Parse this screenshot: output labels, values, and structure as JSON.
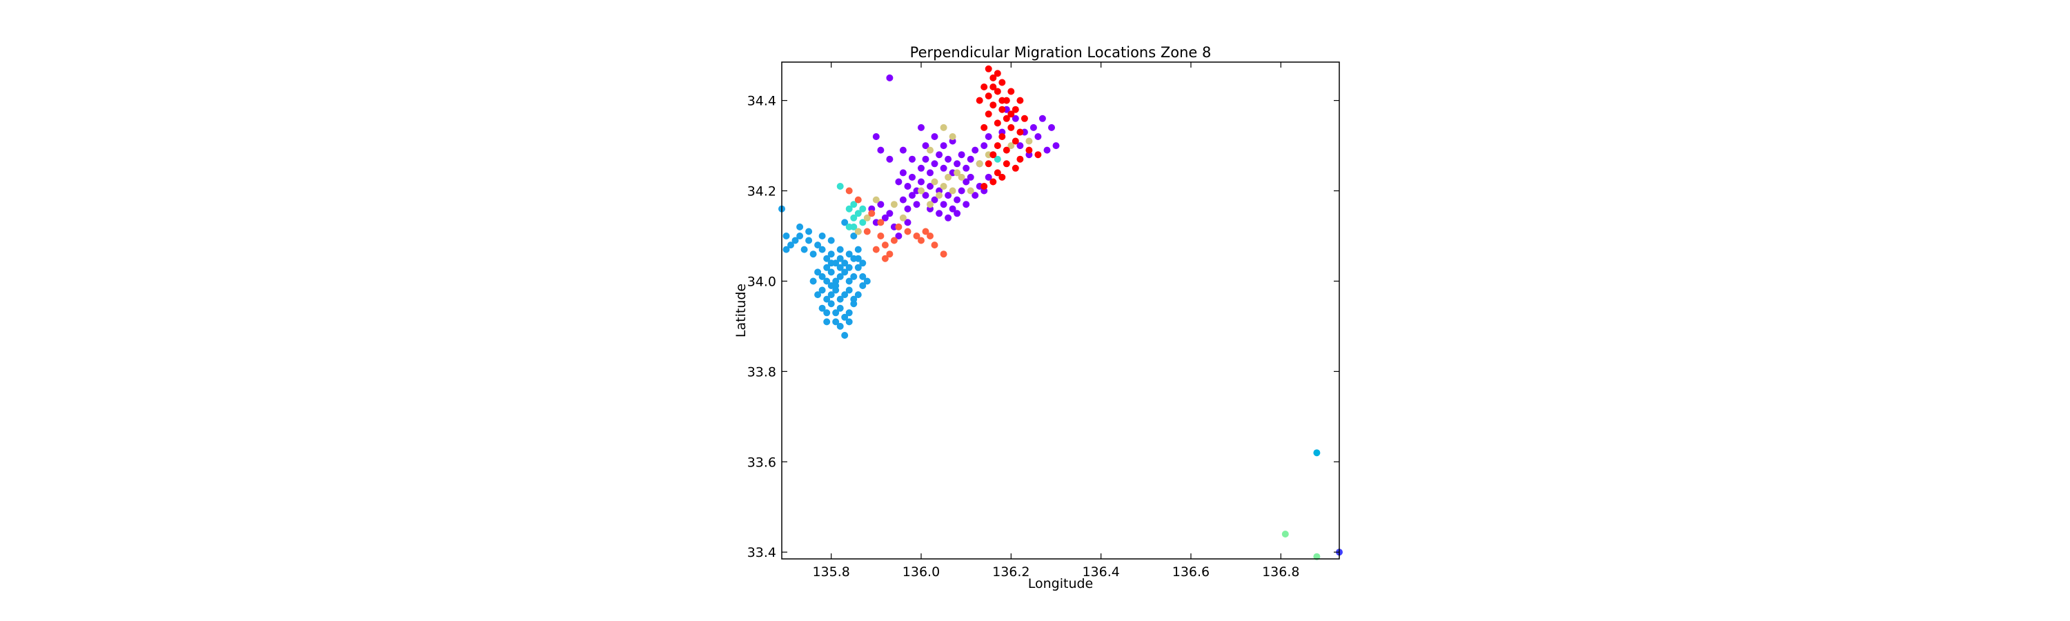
{
  "chart_data": {
    "type": "scatter",
    "title": "Perpendicular Migration Locations Zone 8",
    "xlabel": "Longitude",
    "ylabel": "Latitude",
    "xlim": [
      135.69,
      136.93
    ],
    "ylim": [
      33.385,
      34.485
    ],
    "xticks": [
      135.8,
      136.0,
      136.2,
      136.4,
      136.6,
      136.8
    ],
    "xtick_labels": [
      "135.8",
      "136.0",
      "136.2",
      "136.4",
      "136.6",
      "136.8"
    ],
    "yticks": [
      33.4,
      33.6,
      33.8,
      34.0,
      34.2,
      34.4
    ],
    "ytick_labels": [
      "33.4",
      "33.6",
      "33.8",
      "34.0",
      "34.2",
      "34.4"
    ],
    "grid": false,
    "legend": "none",
    "series": [
      {
        "color": "#1aa0e8",
        "points": [
          [
            135.7,
            34.1
          ],
          [
            135.71,
            34.08
          ],
          [
            135.72,
            34.09
          ],
          [
            135.73,
            34.1
          ],
          [
            135.7,
            34.07
          ],
          [
            135.69,
            34.16
          ],
          [
            135.74,
            34.07
          ],
          [
            135.75,
            34.09
          ],
          [
            135.76,
            34.06
          ],
          [
            135.77,
            34.08
          ],
          [
            135.78,
            34.07
          ],
          [
            135.79,
            34.05
          ],
          [
            135.8,
            34.06
          ],
          [
            135.81,
            34.04
          ],
          [
            135.82,
            34.05
          ],
          [
            135.83,
            34.04
          ],
          [
            135.84,
            34.06
          ],
          [
            135.85,
            34.05
          ],
          [
            135.76,
            34.0
          ],
          [
            135.77,
            34.02
          ],
          [
            135.78,
            34.01
          ],
          [
            135.79,
            34.03
          ],
          [
            135.8,
            34.02
          ],
          [
            135.81,
            34.0
          ],
          [
            135.82,
            34.01
          ],
          [
            135.83,
            34.02
          ],
          [
            135.84,
            34.0
          ],
          [
            135.85,
            34.01
          ],
          [
            135.86,
            34.03
          ],
          [
            135.87,
            34.04
          ],
          [
            135.77,
            33.97
          ],
          [
            135.78,
            33.98
          ],
          [
            135.79,
            33.96
          ],
          [
            135.8,
            33.97
          ],
          [
            135.81,
            33.98
          ],
          [
            135.82,
            33.96
          ],
          [
            135.83,
            33.97
          ],
          [
            135.84,
            33.98
          ],
          [
            135.85,
            33.96
          ],
          [
            135.86,
            33.97
          ],
          [
            135.87,
            33.99
          ],
          [
            135.78,
            33.94
          ],
          [
            135.79,
            33.93
          ],
          [
            135.8,
            33.95
          ],
          [
            135.81,
            33.93
          ],
          [
            135.82,
            33.94
          ],
          [
            135.83,
            33.92
          ],
          [
            135.84,
            33.93
          ],
          [
            135.85,
            33.95
          ],
          [
            135.79,
            33.91
          ],
          [
            135.81,
            33.91
          ],
          [
            135.82,
            33.9
          ],
          [
            135.84,
            33.91
          ],
          [
            135.83,
            33.88
          ],
          [
            135.87,
            34.01
          ],
          [
            135.88,
            34.0
          ],
          [
            135.86,
            34.05
          ],
          [
            135.82,
            34.07
          ],
          [
            135.8,
            34.09
          ],
          [
            135.78,
            34.1
          ],
          [
            135.75,
            34.11
          ],
          [
            135.73,
            34.12
          ],
          [
            135.83,
            34.13
          ],
          [
            135.85,
            34.1
          ],
          [
            135.86,
            34.07
          ],
          [
            135.81,
            33.99
          ],
          [
            135.8,
            33.99
          ],
          [
            135.79,
            34.0
          ],
          [
            135.82,
            34.03
          ],
          [
            135.84,
            34.03
          ],
          [
            135.8,
            34.04
          ]
        ]
      },
      {
        "color": "#36e0d0",
        "points": [
          [
            135.84,
            34.16
          ],
          [
            135.85,
            34.14
          ],
          [
            135.86,
            34.15
          ],
          [
            135.87,
            34.13
          ],
          [
            135.85,
            34.12
          ],
          [
            135.86,
            34.11
          ],
          [
            135.84,
            34.12
          ],
          [
            135.82,
            34.21
          ],
          [
            135.87,
            34.16
          ],
          [
            135.85,
            34.17
          ],
          [
            136.16,
            34.28
          ],
          [
            136.17,
            34.27
          ]
        ]
      },
      {
        "color": "#8000ff",
        "points": [
          [
            135.95,
            34.22
          ],
          [
            135.96,
            34.24
          ],
          [
            135.97,
            34.21
          ],
          [
            135.98,
            34.23
          ],
          [
            135.99,
            34.2
          ],
          [
            136.0,
            34.22
          ],
          [
            136.01,
            34.19
          ],
          [
            136.02,
            34.21
          ],
          [
            136.03,
            34.18
          ],
          [
            136.04,
            34.2
          ],
          [
            136.05,
            34.17
          ],
          [
            136.06,
            34.19
          ],
          [
            136.07,
            34.16
          ],
          [
            136.08,
            34.18
          ],
          [
            136.09,
            34.2
          ],
          [
            136.1,
            34.22
          ],
          [
            135.96,
            34.18
          ],
          [
            135.97,
            34.16
          ],
          [
            135.98,
            34.19
          ],
          [
            135.99,
            34.17
          ],
          [
            136.0,
            34.25
          ],
          [
            136.01,
            34.27
          ],
          [
            136.02,
            34.24
          ],
          [
            136.03,
            34.26
          ],
          [
            136.04,
            34.28
          ],
          [
            136.05,
            34.25
          ],
          [
            136.06,
            34.27
          ],
          [
            136.07,
            34.24
          ],
          [
            136.08,
            34.26
          ],
          [
            136.09,
            34.28
          ],
          [
            136.1,
            34.25
          ],
          [
            136.11,
            34.27
          ],
          [
            136.12,
            34.29
          ],
          [
            136.13,
            34.26
          ],
          [
            136.14,
            34.3
          ],
          [
            136.15,
            34.32
          ],
          [
            135.93,
            34.15
          ],
          [
            135.92,
            34.14
          ],
          [
            135.91,
            34.17
          ],
          [
            135.9,
            34.13
          ],
          [
            135.89,
            34.16
          ],
          [
            135.94,
            34.12
          ],
          [
            135.95,
            34.1
          ],
          [
            135.97,
            34.13
          ],
          [
            136.02,
            34.16
          ],
          [
            136.04,
            34.15
          ],
          [
            136.06,
            34.14
          ],
          [
            136.08,
            34.15
          ],
          [
            136.1,
            34.17
          ],
          [
            136.12,
            34.19
          ],
          [
            136.11,
            34.23
          ],
          [
            136.13,
            34.21
          ],
          [
            135.93,
            34.27
          ],
          [
            135.91,
            34.29
          ],
          [
            135.9,
            34.32
          ],
          [
            136.0,
            34.34
          ],
          [
            136.03,
            34.32
          ],
          [
            136.05,
            34.3
          ],
          [
            136.07,
            34.31
          ],
          [
            136.01,
            34.3
          ],
          [
            135.98,
            34.27
          ],
          [
            135.96,
            34.29
          ],
          [
            136.22,
            34.3
          ],
          [
            136.24,
            34.28
          ],
          [
            136.26,
            34.32
          ],
          [
            136.28,
            34.29
          ],
          [
            136.29,
            34.34
          ],
          [
            136.27,
            34.36
          ],
          [
            136.25,
            34.34
          ],
          [
            136.23,
            34.33
          ],
          [
            136.21,
            34.36
          ],
          [
            136.19,
            34.38
          ],
          [
            136.18,
            34.33
          ],
          [
            136.3,
            34.3
          ],
          [
            135.93,
            34.45
          ],
          [
            136.14,
            34.2
          ],
          [
            136.15,
            34.23
          ]
        ]
      },
      {
        "color": "#d4c880",
        "points": [
          [
            136.03,
            34.22
          ],
          [
            136.05,
            34.21
          ],
          [
            136.06,
            34.23
          ],
          [
            136.04,
            34.19
          ],
          [
            136.07,
            34.2
          ],
          [
            136.09,
            34.23
          ],
          [
            136.05,
            34.34
          ],
          [
            136.07,
            34.32
          ],
          [
            136.02,
            34.17
          ],
          [
            135.96,
            34.14
          ],
          [
            135.94,
            34.17
          ],
          [
            135.9,
            34.18
          ],
          [
            135.86,
            34.11
          ],
          [
            135.88,
            34.14
          ],
          [
            136.13,
            34.26
          ],
          [
            136.15,
            34.28
          ],
          [
            136.2,
            34.3
          ],
          [
            136.24,
            34.31
          ],
          [
            136.11,
            34.2
          ],
          [
            136.0,
            34.2
          ],
          [
            136.08,
            34.24
          ],
          [
            136.02,
            34.29
          ]
        ]
      },
      {
        "color": "#ff6040",
        "points": [
          [
            135.91,
            34.1
          ],
          [
            135.92,
            34.08
          ],
          [
            135.93,
            34.06
          ],
          [
            135.92,
            34.05
          ],
          [
            135.94,
            34.09
          ],
          [
            135.95,
            34.12
          ],
          [
            135.97,
            34.11
          ],
          [
            135.99,
            34.1
          ],
          [
            136.0,
            34.09
          ],
          [
            136.02,
            34.1
          ],
          [
            136.03,
            34.08
          ],
          [
            136.05,
            34.06
          ],
          [
            135.9,
            34.07
          ],
          [
            135.88,
            34.11
          ],
          [
            135.89,
            34.15
          ],
          [
            135.86,
            34.18
          ],
          [
            135.84,
            34.2
          ],
          [
            135.91,
            34.13
          ],
          [
            136.01,
            34.11
          ]
        ]
      },
      {
        "color": "#ff0000",
        "points": [
          [
            136.15,
            34.47
          ],
          [
            136.16,
            34.45
          ],
          [
            136.17,
            34.46
          ],
          [
            136.14,
            34.43
          ],
          [
            136.15,
            34.41
          ],
          [
            136.16,
            34.43
          ],
          [
            136.17,
            34.42
          ],
          [
            136.18,
            34.44
          ],
          [
            136.19,
            34.4
          ],
          [
            136.2,
            34.42
          ],
          [
            136.21,
            34.38
          ],
          [
            136.19,
            34.36
          ],
          [
            136.18,
            34.38
          ],
          [
            136.17,
            34.35
          ],
          [
            136.2,
            34.34
          ],
          [
            136.21,
            34.31
          ],
          [
            136.19,
            34.29
          ],
          [
            136.18,
            34.32
          ],
          [
            136.17,
            34.3
          ],
          [
            136.16,
            34.28
          ],
          [
            136.15,
            34.26
          ],
          [
            136.17,
            34.24
          ],
          [
            136.16,
            34.22
          ],
          [
            136.14,
            34.21
          ],
          [
            136.22,
            34.33
          ],
          [
            136.23,
            34.36
          ],
          [
            136.2,
            34.37
          ],
          [
            136.18,
            34.4
          ],
          [
            136.22,
            34.4
          ],
          [
            136.16,
            34.39
          ],
          [
            136.15,
            34.37
          ],
          [
            136.14,
            34.34
          ],
          [
            136.13,
            34.4
          ],
          [
            136.22,
            34.27
          ],
          [
            136.24,
            34.29
          ],
          [
            136.26,
            34.28
          ],
          [
            136.21,
            34.25
          ],
          [
            136.19,
            34.26
          ],
          [
            136.18,
            34.23
          ]
        ]
      },
      {
        "color": "#00b0e0",
        "points": [
          [
            136.88,
            33.62
          ]
        ]
      },
      {
        "color": "#80f0a0",
        "points": [
          [
            136.81,
            33.44
          ],
          [
            136.88,
            33.39
          ]
        ]
      },
      {
        "color": "#4040ff",
        "points": [
          [
            136.93,
            33.4
          ]
        ]
      }
    ]
  }
}
